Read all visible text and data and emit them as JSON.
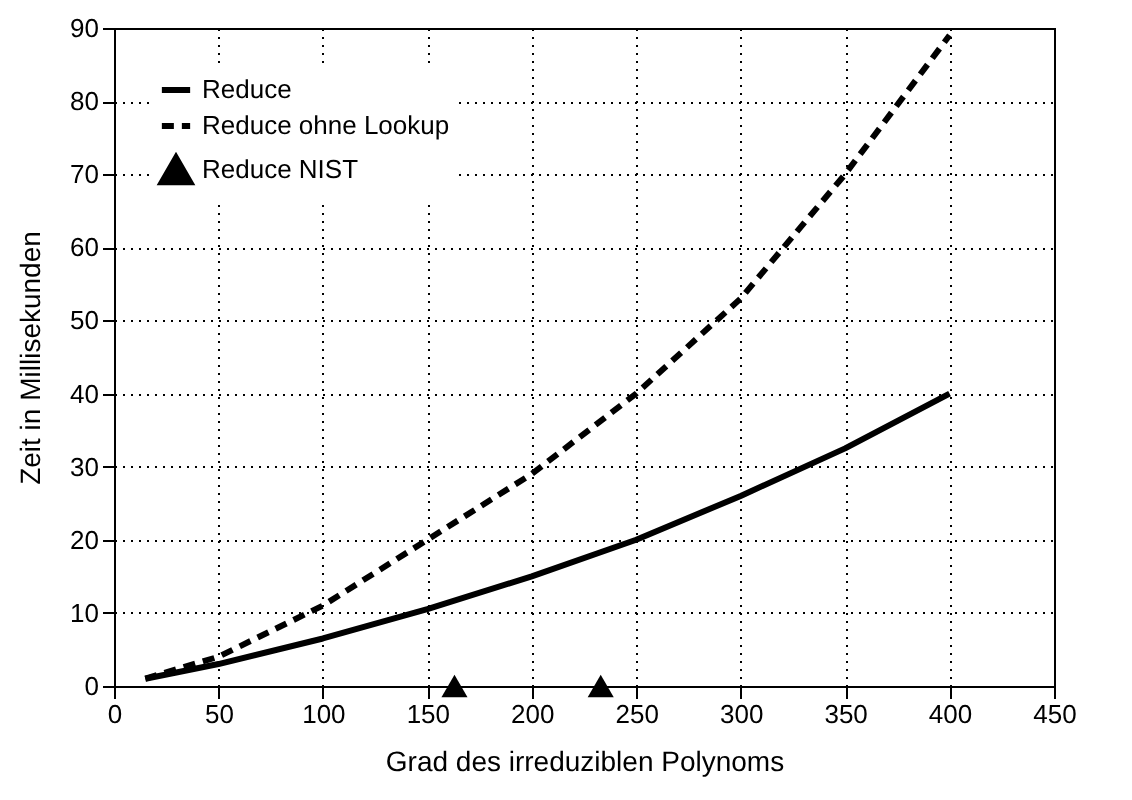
{
  "chart_data": {
    "type": "line",
    "xlabel": "Grad des irreduziblen Polynoms",
    "ylabel": "Zeit in Millisekunden",
    "xlim": [
      0,
      450
    ],
    "xticks": [
      0,
      50,
      100,
      150,
      200,
      250,
      300,
      350,
      400,
      450
    ],
    "ylim": [
      0,
      90
    ],
    "yticks": [
      0,
      10,
      20,
      30,
      40,
      50,
      60,
      70,
      80,
      90
    ],
    "grid": true,
    "legend": "top left",
    "marker": "none",
    "series": [
      {
        "name": "Reduce",
        "color": "#000000",
        "line_style": "solid",
        "x": [
          15,
          50,
          100,
          150,
          200,
          250,
          300,
          350,
          400
        ],
        "values": [
          1,
          3,
          6.5,
          10.5,
          15,
          20,
          26,
          32.5,
          40
        ]
      },
      {
        "name": "Reduce ohne Lookup",
        "color": "#000000",
        "line_style": "dashed",
        "x": [
          15,
          50,
          100,
          150,
          200,
          250,
          300,
          350,
          400
        ],
        "values": [
          1,
          4,
          11,
          20,
          29,
          40,
          53,
          70,
          89
        ]
      },
      {
        "name": "Reduce NIST",
        "color": "#000000",
        "type": "scatter",
        "marker": "triangle",
        "x": [
          163,
          233
        ],
        "values": [
          0,
          0
        ]
      }
    ]
  }
}
